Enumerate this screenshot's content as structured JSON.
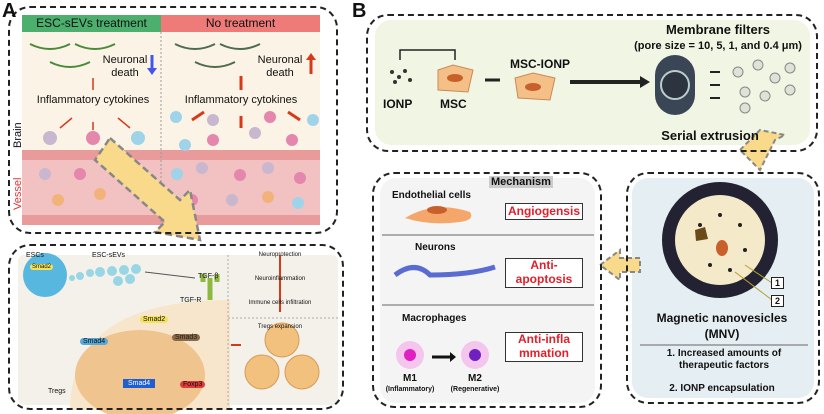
{
  "panel_a": {
    "label": "A",
    "header_left": "ESC-sEVs treatment",
    "header_right": "No treatment",
    "header_left_color": "#4caf6e",
    "header_right_color": "#ef7b78",
    "neuronal_death_left": "Neuronal death",
    "neuronal_death_right": "Neuronal death",
    "cytokines_left": "Inflammatory cytokines",
    "cytokines_right": "Inflammatory cytokines",
    "brain": "Brain",
    "vessel": "Vessel",
    "mech": {
      "escs": "ESCs",
      "esc_sevs": "ESC-sEVs",
      "tgf_beta": "TGF-β",
      "tgf_r": "TGF-R",
      "smad2": "Smad2",
      "smad3": "Smad3",
      "smad4": "Smad4",
      "foxp3": "Foxp3",
      "tregs": "Tregs",
      "neuroprotection": "Neuroprotection",
      "neuroinflammation": "Neuroinflammation",
      "immune_infiltration": "Immune cells infiltration",
      "tregs_expansion": "Tregs expansion"
    }
  },
  "panel_b": {
    "label": "B",
    "ionp": "IONP",
    "msc": "MSC",
    "msc_ionp": "MSC-IONP",
    "membrane_filters": "Membrane filters",
    "pore_size": "(pore size = 10, 5, 1, and 0.4 μm)",
    "serial_extrusion": "Serial extrusion",
    "mechanism": {
      "title": "Mechanism",
      "endothelial": "Endothelial cells",
      "angiogenesis": "Angiogensis",
      "neurons": "Neurons",
      "anti_apoptosis": "Anti-apoptosis",
      "macrophages": "Macrophages",
      "anti_inflammation": "Anti-inflammation",
      "m1": "M1",
      "m1_sub": "(Inflammatory)",
      "m2": "M2",
      "m2_sub": "(Regenerative)"
    },
    "mnv": {
      "marker1": "1",
      "marker2": "2",
      "title": "Magnetic nanovesicles",
      "abbr": "(MNV)",
      "point1": "1. Increased amounts of therapeutic factors",
      "point2": "2. IONP encapsulation"
    }
  }
}
